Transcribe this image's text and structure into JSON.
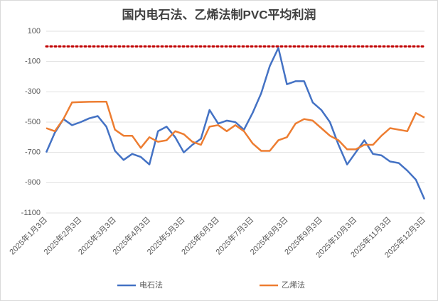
{
  "chart_data": {
    "type": "line",
    "title": "国内电石法、乙烯法制PVC平均利润",
    "categories": [
      "2025年1月3日",
      null,
      null,
      null,
      "2025年2月3日",
      null,
      null,
      null,
      "2025年3月3日",
      null,
      null,
      null,
      "2025年4月3日",
      null,
      null,
      null,
      "2025年5月3日",
      null,
      null,
      null,
      "2025年6月3日",
      null,
      null,
      null,
      "2025年7月3日",
      null,
      null,
      null,
      "2025年8月3日",
      null,
      null,
      null,
      "2025年9月3日",
      null,
      null,
      null,
      "2025年10月3日",
      null,
      null,
      null,
      "2025年11月3日",
      null,
      null,
      null,
      "2025年12月3日"
    ],
    "series": [
      {
        "name": "电石法",
        "color": "#4472c4",
        "values": [
          -700,
          -570,
          -480,
          -520,
          -500,
          -475,
          -460,
          -530,
          -690,
          -750,
          -710,
          -730,
          -780,
          -560,
          -530,
          -600,
          -700,
          -650,
          -610,
          -420,
          -510,
          -490,
          -500,
          -550,
          -440,
          -310,
          -130,
          -10,
          -250,
          -230,
          -230,
          -370,
          -420,
          -500,
          -650,
          -780,
          -700,
          -620,
          -710,
          -720,
          -760,
          -770,
          -820,
          -880,
          -1010
        ]
      },
      {
        "name": "乙烯法",
        "color": "#ed7d31",
        "values": [
          -540,
          -560,
          -480,
          -370,
          -368,
          -366,
          -365,
          -365,
          -550,
          -590,
          -590,
          -670,
          -600,
          -630,
          -620,
          -560,
          -580,
          -630,
          -650,
          -530,
          -520,
          -560,
          -520,
          -560,
          -640,
          -690,
          -690,
          -620,
          -600,
          -510,
          -480,
          -490,
          -540,
          -590,
          -620,
          -680,
          -680,
          -650,
          -650,
          -590,
          -540,
          -550,
          -560,
          -440,
          -470
        ]
      }
    ],
    "ylim": [
      -1100,
      100
    ],
    "yticks": [
      100,
      -100,
      -300,
      -500,
      -700,
      -900,
      -1100
    ],
    "grid": true,
    "reference_line": {
      "value": 0,
      "color": "#c00000"
    },
    "legend": "bottom"
  }
}
